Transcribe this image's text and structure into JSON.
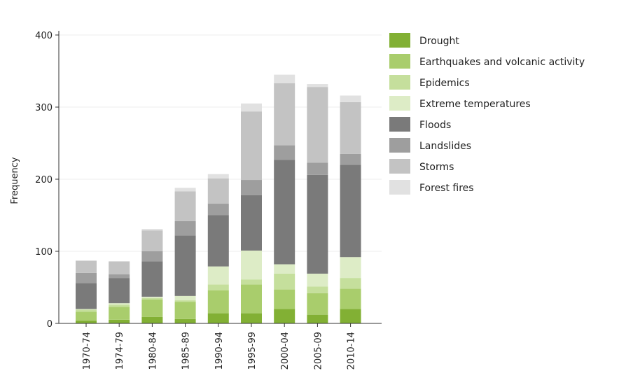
{
  "chart_data": {
    "type": "bar",
    "stacked": true,
    "title": "",
    "xlabel": "",
    "ylabel": "Frequency",
    "ylim": [
      0,
      420
    ],
    "yticks": [
      0,
      100,
      200,
      300,
      400
    ],
    "grid": true,
    "legend_position": "right",
    "categories": [
      "1970-74",
      "1974-79",
      "1980-84",
      "1985-89",
      "1990-94",
      "1995-99",
      "2000-04",
      "2005-09",
      "2010-14"
    ],
    "series": [
      {
        "name": "Drought",
        "color": "#82b034",
        "values": [
          4,
          5,
          9,
          6,
          14,
          14,
          20,
          12,
          20
        ]
      },
      {
        "name": "Earthquakes and volcanic activity",
        "color": "#a9cd6c",
        "values": [
          12,
          18,
          24,
          24,
          32,
          40,
          27,
          30,
          28
        ]
      },
      {
        "name": "Epidemics",
        "color": "#c5df9c",
        "values": [
          3,
          3,
          2,
          2,
          8,
          7,
          22,
          9,
          15
        ]
      },
      {
        "name": "Extreme temperatures",
        "color": "#ddecc6",
        "values": [
          1,
          2,
          2,
          6,
          25,
          40,
          13,
          18,
          29
        ]
      },
      {
        "name": "Floods",
        "color": "#7a7a7a",
        "values": [
          36,
          35,
          49,
          84,
          71,
          77,
          145,
          137,
          128
        ]
      },
      {
        "name": "Landslides",
        "color": "#9e9e9e",
        "values": [
          14,
          5,
          14,
          20,
          16,
          21,
          20,
          17,
          15
        ]
      },
      {
        "name": "Storms",
        "color": "#c3c3c3",
        "values": [
          17,
          18,
          29,
          41,
          35,
          95,
          86,
          105,
          72
        ]
      },
      {
        "name": "Forest fires",
        "color": "#e1e1e1",
        "values": [
          0,
          0,
          2,
          5,
          6,
          11,
          12,
          4,
          9
        ]
      }
    ]
  }
}
